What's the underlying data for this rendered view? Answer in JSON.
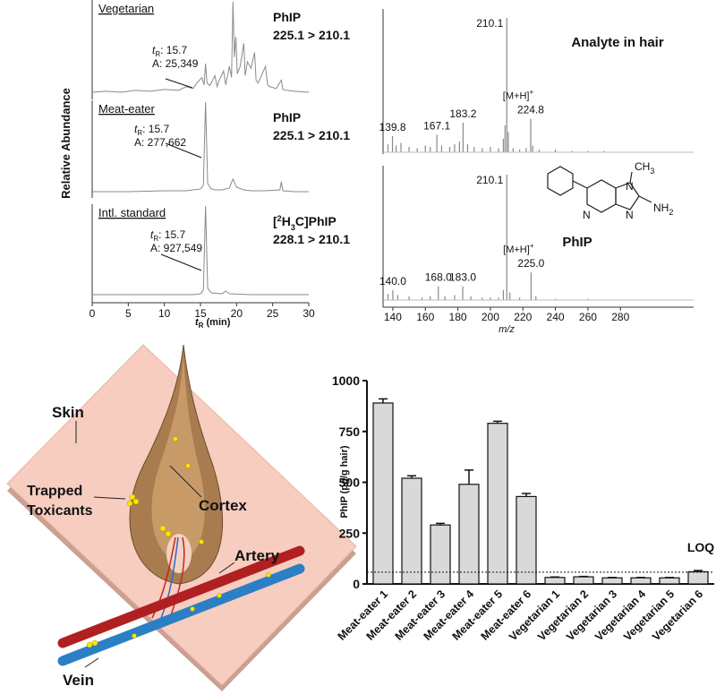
{
  "chart_data": [
    {
      "type": "line",
      "title": "Vegetarian",
      "compound": "PhIP",
      "transition": "225.1 > 210.1",
      "annotation": {
        "t": "t",
        "sub": "R",
        "rt": ": 15.7",
        "area": "A: 25,349"
      },
      "ylabel": "Relative Abundance",
      "color": "#8a8a8a",
      "xlim": [
        0,
        30
      ],
      "ylim": [
        0,
        100
      ],
      "x": [
        0,
        2,
        4,
        6,
        8,
        10,
        12,
        13,
        14,
        14.5,
        15.2,
        15.5,
        15.7,
        15.9,
        16.3,
        17,
        17.3,
        17.6,
        18.2,
        18.5,
        19,
        19.3,
        19.5,
        19.7,
        19.9,
        20.1,
        20.5,
        21,
        21.2,
        21.5,
        22,
        22.5,
        22.7,
        23,
        24,
        24.3,
        24.6,
        25.5,
        26.2,
        26.4,
        27,
        28,
        30
      ],
      "values": [
        2,
        3,
        2,
        4,
        3,
        5,
        4,
        8,
        6,
        12,
        18,
        10,
        33,
        12,
        9,
        20,
        8,
        15,
        25,
        10,
        30,
        18,
        100,
        40,
        62,
        22,
        30,
        55,
        20,
        35,
        28,
        45,
        15,
        12,
        30,
        10,
        8,
        6,
        15,
        5,
        4,
        3,
        2
      ]
    },
    {
      "type": "line",
      "title": "Meat-eater",
      "compound": "PhIP",
      "transition": "225.1 > 210.1",
      "annotation": {
        "t": "t",
        "sub": "R",
        "rt": ": 15.7",
        "area": "A: 277,662"
      },
      "color": "#8a8a8a",
      "xlim": [
        0,
        30
      ],
      "ylim": [
        0,
        100
      ],
      "x": [
        0,
        5,
        10,
        13,
        14,
        15,
        15.4,
        15.7,
        16,
        16.5,
        17,
        18,
        19,
        19.5,
        20,
        21,
        22,
        24,
        26,
        26.2,
        26.4,
        28,
        30
      ],
      "values": [
        1,
        1,
        2,
        2,
        3,
        4,
        8,
        100,
        10,
        4,
        3,
        3,
        5,
        15,
        6,
        3,
        2,
        2,
        3,
        12,
        2,
        1,
        1
      ]
    },
    {
      "type": "line",
      "title": "Intl. standard",
      "compound": [
        "[",
        "2",
        "H",
        "3",
        "C]PhIP"
      ],
      "transition": "228.1 > 210.1",
      "annotation": {
        "t": "t",
        "sub": "R",
        "rt": ": 15.7",
        "area": "A: 927,549"
      },
      "color": "#8a8a8a",
      "xlim": [
        0,
        30
      ],
      "ylim": [
        0,
        100
      ],
      "xticks": [
        0,
        5,
        10,
        15,
        20,
        25,
        30
      ],
      "xlabel": {
        "t": "t",
        "sub": "R",
        "rest": " (min)"
      },
      "x": [
        0,
        5,
        10,
        14,
        15,
        15.4,
        15.7,
        16,
        16.5,
        18,
        18.5,
        19,
        22,
        26,
        30
      ],
      "values": [
        1,
        1,
        1,
        1,
        2,
        6,
        100,
        8,
        3,
        2,
        5,
        2,
        1,
        1,
        1
      ]
    },
    {
      "type": "stem",
      "title": "Analyte in hair",
      "color": "#8a8a8a",
      "xlim": [
        134,
        325
      ],
      "ylim": [
        0,
        100
      ],
      "x": [
        137,
        139.8,
        142,
        145,
        150,
        155,
        160,
        163,
        167.1,
        170,
        175,
        178,
        181,
        183.2,
        186,
        190,
        195,
        200,
        205,
        208,
        209,
        210.1,
        211,
        214,
        218,
        222,
        224.8,
        226,
        230,
        240,
        250,
        260,
        270
      ],
      "values": [
        6,
        12,
        5,
        7,
        4,
        3,
        5,
        4,
        13,
        5,
        4,
        6,
        8,
        22,
        6,
        4,
        3,
        4,
        3,
        10,
        20,
        100,
        15,
        3,
        2,
        3,
        25,
        5,
        2,
        2,
        1,
        1,
        1
      ],
      "peak_labels": [
        null,
        "139.8",
        null,
        null,
        null,
        null,
        null,
        null,
        "167.1",
        null,
        null,
        null,
        null,
        "183.2",
        null,
        null,
        null,
        null,
        null,
        null,
        null,
        "210.1",
        null,
        null,
        null,
        null,
        {
          "label": "224.8",
          "adduct": "[M+H]",
          "sup": "+"
        },
        null,
        null,
        null,
        null,
        null,
        null
      ]
    },
    {
      "type": "stem",
      "title": "PhIP",
      "color": "#8a8a8a",
      "xlim": [
        134,
        325
      ],
      "ylim": [
        0,
        100
      ],
      "xticks": [
        140,
        160,
        180,
        200,
        220,
        240,
        260,
        280
      ],
      "xlabel": "m/z",
      "x": [
        137,
        140,
        143,
        150,
        158,
        163,
        168,
        172,
        178,
        183,
        188,
        195,
        200,
        205,
        208,
        210.1,
        212,
        218,
        225,
        228,
        240,
        260
      ],
      "values": [
        5,
        8,
        4,
        3,
        2,
        3,
        11,
        3,
        4,
        11,
        3,
        2,
        2,
        2,
        8,
        100,
        6,
        2,
        22,
        3,
        1,
        1
      ],
      "peak_labels": [
        null,
        "140.0",
        null,
        null,
        null,
        null,
        "168.0",
        null,
        null,
        "183.0",
        null,
        null,
        null,
        null,
        null,
        "210.1",
        null,
        null,
        {
          "label": "225.0",
          "adduct": "[M+H]",
          "sup": "+"
        },
        null,
        null,
        null
      ]
    },
    {
      "type": "bar",
      "ylabel": "PhIP (pg/g hair)",
      "color": "#d9d9d9",
      "categories": [
        "Meat-eater 1",
        "Meat-eater 2",
        "Meat-eater 3",
        "Meat-eater 4",
        "Meat-eater 5",
        "Meat-eater 6",
        "Vegetarian 1",
        "Vegetarian 2",
        "Vegetarian 3",
        "Vegetarian 4",
        "Vegetarian 5",
        "Vegetarian 6"
      ],
      "values": [
        890,
        520,
        290,
        490,
        790,
        430,
        32,
        35,
        30,
        30,
        30,
        60
      ],
      "error": [
        20,
        12,
        8,
        70,
        10,
        15,
        2,
        2,
        2,
        2,
        2,
        6
      ],
      "ylim": [
        0,
        1000
      ],
      "yticks": [
        0,
        250,
        500,
        750,
        1000
      ],
      "loq": 58,
      "loq_label": "LOQ"
    }
  ],
  "structure": {
    "ch": "CH",
    "ch_sub": "3",
    "nh": "NH",
    "nh_sub": "2",
    "n1": "N",
    "n2": "N",
    "n3": "N"
  },
  "diagram": {
    "skin": "Skin",
    "trapped": "Trapped",
    "toxicants": "Toxicants",
    "cortex": "Cortex",
    "artery": "Artery",
    "vein": "Vein"
  }
}
